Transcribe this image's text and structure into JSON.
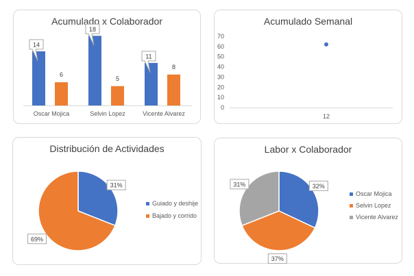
{
  "chart_data": [
    {
      "type": "bar",
      "title": "Acumulado x Colaborador",
      "categories": [
        "Oscar Mojica",
        "Selvin Lopez",
        "Vicente Alvarez"
      ],
      "series": [
        {
          "values": [
            14,
            18,
            11
          ],
          "color": "#4472c4"
        },
        {
          "values": [
            6,
            5,
            8
          ],
          "color": "#ed7d31"
        }
      ],
      "ylim": [
        0,
        20
      ],
      "grid": false,
      "legend": "none"
    },
    {
      "type": "scatter",
      "title": "Acumulado Semanal",
      "x": [
        12
      ],
      "y": [
        62
      ],
      "xticks": [
        "12"
      ],
      "yticks": [
        "0",
        "10",
        "20",
        "30",
        "40",
        "50",
        "60",
        "70"
      ],
      "ylim": [
        0,
        70
      ],
      "color": "#4472c4",
      "grid": false
    },
    {
      "type": "pie",
      "title": "Distribución de Actividades",
      "slices": [
        {
          "label": "Guiado y deshije",
          "value": 31,
          "pct": "31%",
          "color": "#4472c4"
        },
        {
          "label": "Bajado y corrido",
          "value": 69,
          "pct": "69%",
          "color": "#ed7d31"
        }
      ],
      "legend": "right"
    },
    {
      "type": "pie",
      "title": "Labor x Colaborador",
      "slices": [
        {
          "label": "Oscar Mojica",
          "value": 32,
          "pct": "32%",
          "color": "#4472c4"
        },
        {
          "label": "Selvin Lopez",
          "value": 37,
          "pct": "37%",
          "color": "#ed7d31"
        },
        {
          "label": "Vicente Alvarez",
          "value": 31,
          "pct": "31%",
          "color": "#a5a5a5"
        }
      ],
      "legend": "right"
    }
  ]
}
